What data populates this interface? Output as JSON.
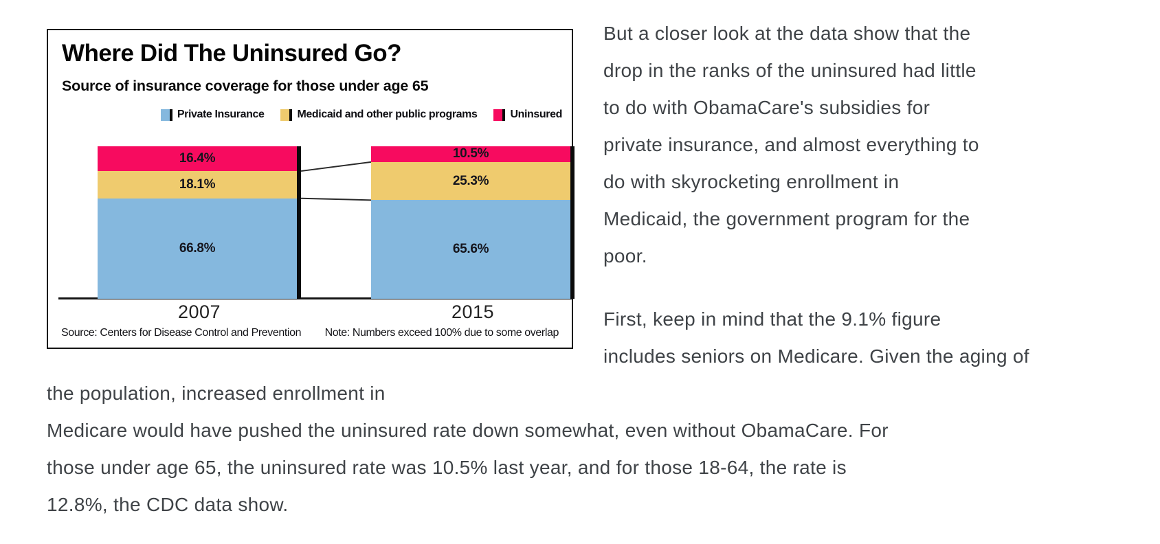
{
  "figure": {
    "title": "Where Did The Uninsured Go?",
    "subtitle": "Source of insurance coverage for those under age 65",
    "source_note": "Source: Centers for Disease Control and Prevention",
    "overlap_note": "Note: Numbers exceed 100% due to some overlap"
  },
  "chart_data": {
    "type": "bar",
    "stacked": true,
    "title": "Where Did The Uninsured Go?",
    "subtitle": "Source of insurance coverage for those under age 65",
    "categories": [
      "2007",
      "2015"
    ],
    "series": [
      {
        "name": "Private Insurance",
        "color": "#85b8de",
        "values": [
          66.8,
          65.6
        ]
      },
      {
        "name": "Medicaid and other public programs",
        "color": "#efcb6e",
        "values": [
          18.1,
          25.3
        ]
      },
      {
        "name": "Uninsured",
        "color": "#f70b5f",
        "values": [
          16.4,
          10.5
        ]
      }
    ],
    "value_suffix": "%",
    "ylim": [
      0,
      102
    ],
    "grid": false,
    "legend_position": "top",
    "notes": [
      "Source: Centers for Disease Control and Prevention",
      "Note: Numbers exceed 100% due to some overlap"
    ]
  },
  "article": {
    "paragraph_1_lines": [
      "But a closer look at the data show that the",
      "drop in the ranks of the uninsured had little",
      "to do with ObamaCare's subsidies for",
      "private insurance, and almost everything to",
      "do with skyrocketing enrollment in",
      "Medicaid, the government program for the",
      "poor."
    ],
    "paragraph_2_lines": [
      "First, keep in mind that the 9.1% figure",
      "includes seniors on Medicare. Given the aging of the population, increased enrollment in",
      "Medicare would have pushed the uninsured rate down somewhat, even without ObamaCare. For",
      "those under age 65, the uninsured rate was 10.5% last year, and for those 18-64, the rate is",
      "12.8%, the CDC data show."
    ]
  }
}
